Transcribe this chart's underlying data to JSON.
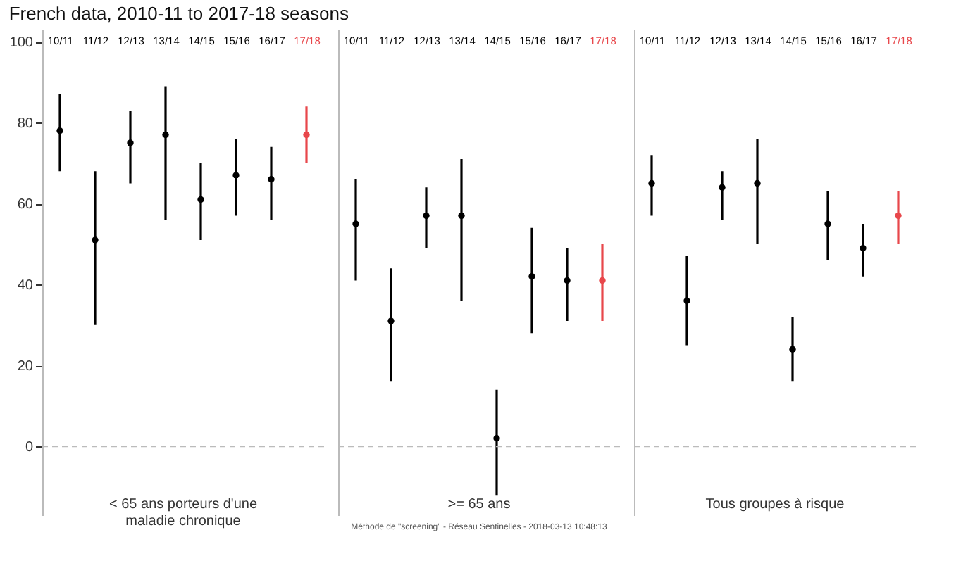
{
  "chart_data": [
    {
      "type": "scatter",
      "title": "French data, 2010-11 to 2017-18 seasons",
      "xlabel": "< 65 ans porteurs d'une maladie chronique",
      "categories": [
        "10/11",
        "11/12",
        "12/13",
        "13/14",
        "14/15",
        "15/16",
        "16/17",
        "17/18"
      ],
      "values": [
        78,
        51,
        75,
        77,
        61,
        67,
        66,
        77
      ],
      "errors": [
        [
          68,
          87
        ],
        [
          30,
          68
        ],
        [
          65,
          83
        ],
        [
          56,
          89
        ],
        [
          51,
          70
        ],
        [
          57,
          76
        ],
        [
          56,
          74
        ],
        [
          70,
          84
        ]
      ],
      "colors": [
        "#000000",
        "#000000",
        "#000000",
        "#000000",
        "#000000",
        "#000000",
        "#000000",
        "#e8474b"
      ],
      "ylim": [
        -17,
        103
      ],
      "yticks": [
        0,
        20,
        40,
        60,
        80,
        100
      ],
      "marker": "circle",
      "ref_lines": [
        {
          "axis": "y",
          "value": 0,
          "color": "#bbbbbb",
          "line_style": "dashed"
        }
      ]
    },
    {
      "type": "scatter",
      "xlabel": ">= 65 ans",
      "categories": [
        "10/11",
        "11/12",
        "12/13",
        "13/14",
        "14/15",
        "15/16",
        "16/17",
        "17/18"
      ],
      "values": [
        55,
        31,
        57,
        57,
        2,
        42,
        41,
        41
      ],
      "errors": [
        [
          41,
          66
        ],
        [
          16,
          44
        ],
        [
          49,
          64
        ],
        [
          36,
          71
        ],
        [
          -12,
          14
        ],
        [
          28,
          54
        ],
        [
          31,
          49
        ],
        [
          31,
          50
        ]
      ],
      "colors": [
        "#000000",
        "#000000",
        "#000000",
        "#000000",
        "#000000",
        "#000000",
        "#000000",
        "#e8474b"
      ],
      "ylim": [
        -17,
        103
      ],
      "yticks": [
        0,
        20,
        40,
        60,
        80,
        100
      ],
      "tick_labels": "x",
      "marker": "circle",
      "ref_lines": [
        {
          "axis": "y",
          "value": 0,
          "color": "#bbbbbb",
          "line_style": "dashed"
        }
      ],
      "annotations": [
        "Méthode de \"screening\" - Réseau Sentinelles - 2018-03-13 10:48:13"
      ]
    },
    {
      "type": "scatter",
      "xlabel": "Tous groupes à risque",
      "categories": [
        "10/11",
        "11/12",
        "12/13",
        "13/14",
        "14/15",
        "15/16",
        "16/17",
        "17/18"
      ],
      "values": [
        65,
        36,
        64,
        65,
        24,
        55,
        49,
        57
      ],
      "errors": [
        [
          57,
          72
        ],
        [
          25,
          47
        ],
        [
          56,
          68
        ],
        [
          50,
          76
        ],
        [
          16,
          32
        ],
        [
          46,
          63
        ],
        [
          42,
          55
        ],
        [
          50,
          63
        ]
      ],
      "colors": [
        "#000000",
        "#000000",
        "#000000",
        "#000000",
        "#000000",
        "#000000",
        "#000000",
        "#e8474b"
      ],
      "ylim": [
        -17,
        103
      ],
      "yticks": [
        0,
        20,
        40,
        60,
        80,
        100
      ],
      "tick_labels": "x",
      "marker": "circle",
      "ref_lines": [
        {
          "axis": "y",
          "value": 0,
          "color": "#bbbbbb",
          "line_style": "dashed"
        }
      ]
    }
  ]
}
